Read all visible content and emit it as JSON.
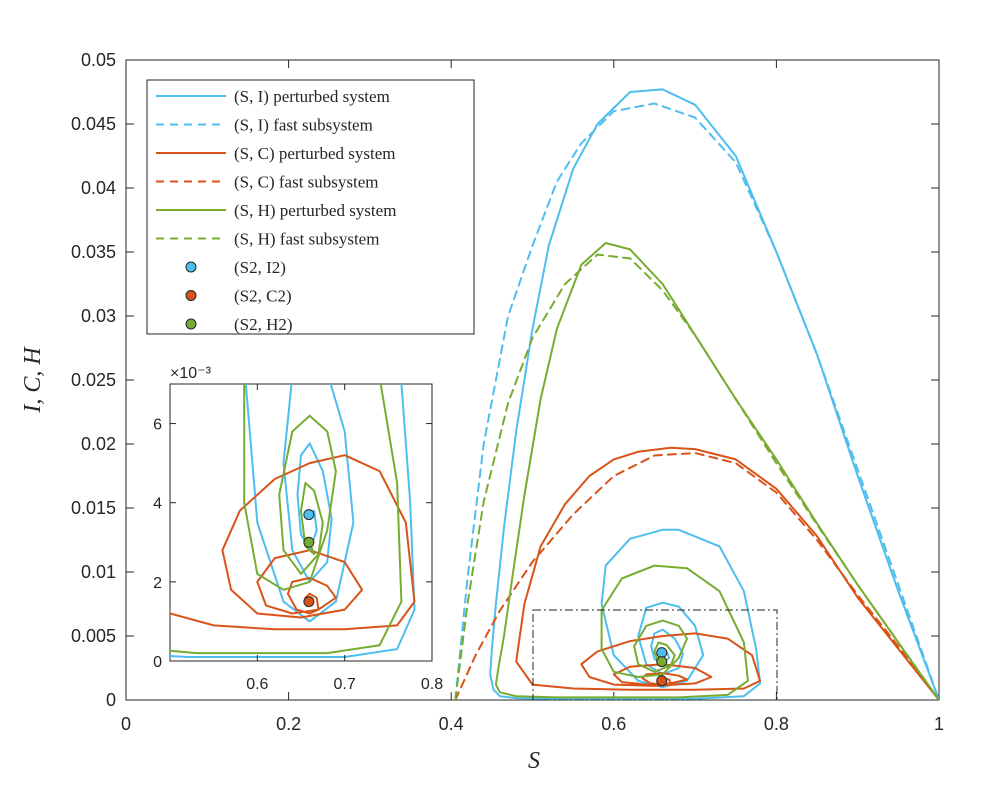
{
  "chart_data": [
    {
      "type": "line",
      "title": "",
      "xlabel": "S",
      "ylabel": "I, C, H",
      "xlim": [
        0,
        1
      ],
      "ylim": [
        0,
        0.05
      ],
      "xticks": [
        "0",
        "0.2",
        "0.4",
        "0.6",
        "0.8",
        "1"
      ],
      "yticks": [
        "0",
        "0.005",
        "0.01",
        "0.015",
        "0.02",
        "0.025",
        "0.03",
        "0.035",
        "0.04",
        "0.045",
        "0.05"
      ],
      "legend": "top-left",
      "colors": {
        "I": "#4DBEEE",
        "C": "#D95319",
        "H": "#77AC30"
      },
      "series": [
        {
          "name": "(S, I) perturbed system",
          "color": "#4DBEEE",
          "style": "solid",
          "x": [
            1.0,
            0.95,
            0.9,
            0.85,
            0.8,
            0.75,
            0.7,
            0.66,
            0.62,
            0.58,
            0.55,
            0.52,
            0.5,
            0.48,
            0.465,
            0.455,
            0.45,
            0.448,
            0.452,
            0.46,
            0.48,
            0.52,
            0.6,
            0.7,
            0.76,
            0.78,
            0.775,
            0.76,
            0.73,
            0.68,
            0.66,
            0.62,
            0.59,
            0.585,
            0.6,
            0.63,
            0.66,
            0.69,
            0.71,
            0.7,
            0.68,
            0.66,
            0.64,
            0.63,
            0.64,
            0.66,
            0.68,
            0.685,
            0.675,
            0.66,
            0.65,
            0.646,
            0.65,
            0.66,
            0.668,
            0.665,
            0.66
          ],
          "y": [
            0.0,
            0.0085,
            0.0175,
            0.027,
            0.035,
            0.0425,
            0.0465,
            0.0477,
            0.0475,
            0.045,
            0.0415,
            0.0355,
            0.029,
            0.021,
            0.0135,
            0.0075,
            0.004,
            0.002,
            0.0008,
            0.0003,
            0.00015,
            0.0001,
            0.0001,
            0.0001,
            0.0003,
            0.0013,
            0.004,
            0.0085,
            0.012,
            0.0133,
            0.0133,
            0.0126,
            0.0105,
            0.0075,
            0.0035,
            0.0015,
            0.001,
            0.0015,
            0.0035,
            0.0058,
            0.0073,
            0.0076,
            0.0072,
            0.005,
            0.0028,
            0.002,
            0.0025,
            0.0036,
            0.0048,
            0.0055,
            0.0052,
            0.0042,
            0.0032,
            0.0028,
            0.0033,
            0.0038,
            0.0037
          ]
        },
        {
          "name": "(S, I) fast subsystem",
          "color": "#4DBEEE",
          "style": "dashed",
          "x": [
            0.405,
            0.42,
            0.44,
            0.47,
            0.5,
            0.53,
            0.56,
            0.6,
            0.65,
            0.7,
            0.75,
            0.8,
            0.85,
            0.9,
            0.95,
            1.0
          ],
          "y": [
            0.0,
            0.0095,
            0.02,
            0.03,
            0.0355,
            0.0405,
            0.0435,
            0.046,
            0.0466,
            0.0455,
            0.042,
            0.035,
            0.027,
            0.018,
            0.009,
            0.0
          ]
        },
        {
          "name": "(S, C) perturbed system",
          "color": "#D95319",
          "style": "solid",
          "x": [
            1.0,
            0.95,
            0.9,
            0.85,
            0.8,
            0.75,
            0.7,
            0.67,
            0.63,
            0.6,
            0.57,
            0.54,
            0.51,
            0.49,
            0.48,
            0.5,
            0.55,
            0.62,
            0.7,
            0.76,
            0.78,
            0.77,
            0.74,
            0.7,
            0.66,
            0.62,
            0.58,
            0.56,
            0.57,
            0.6,
            0.65,
            0.7,
            0.72,
            0.7,
            0.66,
            0.62,
            0.6,
            0.61,
            0.64,
            0.67,
            0.69,
            0.68,
            0.66,
            0.64,
            0.635,
            0.645,
            0.66,
            0.67,
            0.668,
            0.66,
            0.655,
            0.66
          ],
          "y": [
            0.0,
            0.004,
            0.008,
            0.0128,
            0.0165,
            0.0188,
            0.0196,
            0.0197,
            0.0194,
            0.0188,
            0.0175,
            0.0153,
            0.012,
            0.0075,
            0.003,
            0.0012,
            0.0009,
            0.0008,
            0.0008,
            0.0009,
            0.0015,
            0.0035,
            0.0048,
            0.0052,
            0.005,
            0.0046,
            0.0038,
            0.0028,
            0.0018,
            0.0012,
            0.0011,
            0.0013,
            0.0018,
            0.0025,
            0.0028,
            0.0026,
            0.002,
            0.0014,
            0.0012,
            0.0013,
            0.0016,
            0.0019,
            0.0021,
            0.002,
            0.0017,
            0.0013,
            0.0012,
            0.0013,
            0.0016,
            0.0017,
            0.0016,
            0.0015
          ]
        },
        {
          "name": "(S, C) fast subsystem",
          "color": "#D95319",
          "style": "dashed",
          "x": [
            0.405,
            0.43,
            0.46,
            0.5,
            0.55,
            0.6,
            0.65,
            0.7,
            0.75,
            0.8,
            0.85,
            0.9,
            0.95,
            1.0
          ],
          "y": [
            0.0,
            0.0035,
            0.007,
            0.0108,
            0.0145,
            0.0175,
            0.0191,
            0.0193,
            0.0185,
            0.0162,
            0.0125,
            0.0082,
            0.0042,
            0.0
          ]
        },
        {
          "name": "(S, H) perturbed system",
          "color": "#77AC30",
          "style": "solid",
          "x": [
            1.0,
            0.95,
            0.9,
            0.85,
            0.8,
            0.75,
            0.7,
            0.66,
            0.62,
            0.59,
            0.56,
            0.53,
            0.51,
            0.49,
            0.475,
            0.465,
            0.458,
            0.455,
            0.46,
            0.48,
            0.53,
            0.6,
            0.68,
            0.74,
            0.765,
            0.76,
            0.73,
            0.69,
            0.65,
            0.61,
            0.585,
            0.585,
            0.6,
            0.63,
            0.66,
            0.68,
            0.69,
            0.68,
            0.66,
            0.64,
            0.625,
            0.63,
            0.65,
            0.67,
            0.675,
            0.665,
            0.655,
            0.65,
            0.655,
            0.665,
            0.66
          ],
          "y": [
            0.0,
            0.0045,
            0.009,
            0.0138,
            0.0188,
            0.0235,
            0.0285,
            0.0325,
            0.0352,
            0.0357,
            0.034,
            0.029,
            0.0235,
            0.016,
            0.0095,
            0.005,
            0.0025,
            0.0012,
            0.0006,
            0.0003,
            0.0002,
            0.0002,
            0.0002,
            0.0004,
            0.0015,
            0.0045,
            0.0085,
            0.0103,
            0.0105,
            0.0095,
            0.007,
            0.004,
            0.0022,
            0.0018,
            0.002,
            0.0033,
            0.0048,
            0.0058,
            0.0062,
            0.0058,
            0.0042,
            0.0028,
            0.0022,
            0.0027,
            0.0035,
            0.0043,
            0.0045,
            0.0038,
            0.0029,
            0.0027,
            0.003
          ]
        },
        {
          "name": "(S, H) fast subsystem",
          "color": "#77AC30",
          "style": "dashed",
          "x": [
            0.405,
            0.42,
            0.44,
            0.47,
            0.5,
            0.54,
            0.58,
            0.62,
            0.66,
            0.7,
            0.75,
            0.8,
            0.85,
            0.9,
            0.95,
            1.0
          ],
          "y": [
            0.0,
            0.0075,
            0.0155,
            0.0232,
            0.0283,
            0.0325,
            0.0348,
            0.0345,
            0.032,
            0.0285,
            0.0235,
            0.0185,
            0.0137,
            0.009,
            0.0045,
            0.0
          ]
        }
      ],
      "points": [
        {
          "name": "(S2, I2)",
          "x": 0.659,
          "y": 0.0037,
          "color": "#4DBEEE"
        },
        {
          "name": "(S2, C2)",
          "x": 0.659,
          "y": 0.0015,
          "color": "#D95319"
        },
        {
          "name": "(S2, H2)",
          "x": 0.659,
          "y": 0.003,
          "color": "#77AC30"
        }
      ],
      "zoom_box": {
        "xlim": [
          0.5,
          0.8
        ],
        "ylim": [
          0,
          0.007
        ]
      }
    },
    {
      "type": "line",
      "title": "",
      "xlim": [
        0.5,
        0.8
      ],
      "ylim": [
        0,
        0.007
      ],
      "xticks": [
        "0.6",
        "0.7",
        "0.8"
      ],
      "yticks": [
        "0",
        "2",
        "4",
        "6"
      ],
      "exponent": "×10⁻³",
      "series_ref": "zoom of main chart series"
    }
  ]
}
